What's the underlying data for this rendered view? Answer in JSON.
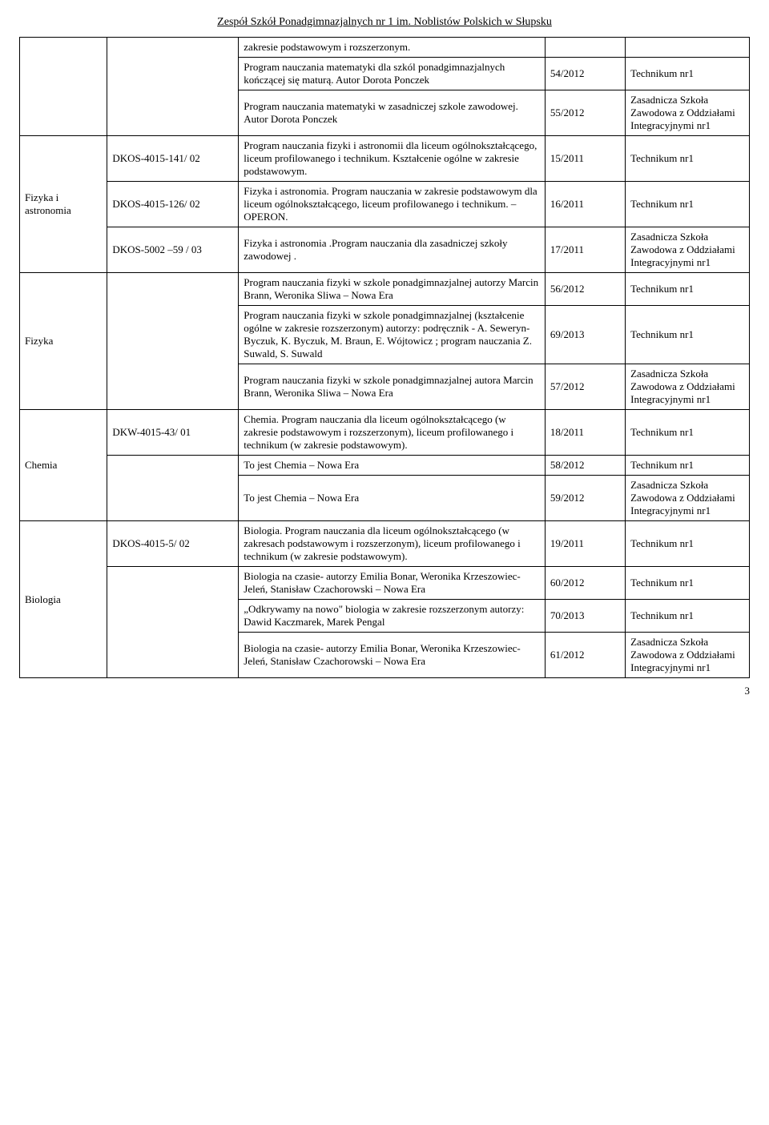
{
  "header": "Zespół Szkół Ponadgimnazjalnych nr 1 im. Noblistów Polskich w Słupsku",
  "page_number": "3",
  "subjects": {
    "fizyka_astronomia": "Fizyka i astronomia",
    "fizyka": "Fizyka",
    "chemia": "Chemia",
    "biologia": "Biologia"
  },
  "codes": {
    "dkos_141": "DKOS-4015-141/ 02",
    "dkos_126": "DKOS-4015-126/ 02",
    "dkos_5002": "DKOS-5002 –59 / 03",
    "dkw_43": "DKW-4015-43/ 01",
    "dkos_5": "DKOS-4015-5/ 02"
  },
  "desc": {
    "r1": "zakresie podstawowym i rozszerzonym.",
    "r2": "Program nauczania matematyki dla szkól ponadgimnazjalnych kończącej się maturą. Autor Dorota Ponczek",
    "r3": "Program nauczania matematyki w zasadniczej szkole zawodowej. Autor Dorota Ponczek",
    "r4": "Program nauczania fizyki i astronomii dla liceum ogólnokształcącego, liceum profilowanego i technikum. Kształcenie ogólne w zakresie podstawowym.",
    "r5": "Fizyka i astronomia. Program nauczania w zakresie podstawowym dla liceum ogólnokształcącego, liceum profilowanego i technikum. – OPERON.",
    "r6": "Fizyka i astronomia .Program nauczania dla zasadniczej szkoły zawodowej .",
    "r7": "Program nauczania fizyki w szkole ponadgimnazjalnej autorzy Marcin Brann, Weronika Sliwa – Nowa Era",
    "r8": "Program nauczania fizyki w szkole ponadgimnazjalnej (kształcenie ogólne w zakresie rozszerzonym) autorzy: podręcznik - A. Seweryn-Byczuk, K. Byczuk, M. Braun, E. Wójtowicz ; program nauczania Z. Suwald, S. Suwald",
    "r9": "Program nauczania fizyki w szkole ponadgimnazjalnej autora Marcin Brann, Weronika Sliwa – Nowa Era",
    "r10": "Chemia. Program nauczania dla liceum ogólnokształcącego (w zakresie podstawowym i rozszerzonym), liceum profilowanego i technikum (w zakresie podstawowym).",
    "r11": "To jest Chemia – Nowa Era",
    "r12": "To jest Chemia – Nowa Era",
    "r13": "Biologia. Program nauczania dla liceum ogólnokształcącego (w zakresach podstawowym i rozszerzonym), liceum profilowanego i technikum (w zakresie podstawowym).",
    "r14": "Biologia na czasie- autorzy Emilia Bonar, Weronika Krzeszowiec-Jeleń, Stanisław Czachorowski – Nowa Era",
    "r15": "„Odkrywamy na nowo\" biologia w zakresie rozszerzonym autorzy: Dawid Kaczmarek, Marek Pengal",
    "r16": "Biologia na czasie- autorzy Emilia Bonar, Weronika Krzeszowiec-Jeleń, Stanisław Czachorowski – Nowa Era"
  },
  "num": {
    "n2": "54/2012",
    "n3": "55/2012",
    "n4": "15/2011",
    "n5": "16/2011",
    "n6": "17/2011",
    "n7": "56/2012",
    "n8": "69/2013",
    "n9": "57/2012",
    "n10": "18/2011",
    "n11": "58/2012",
    "n12": "59/2012",
    "n13": "19/2011",
    "n14": "60/2012",
    "n15": "70/2013",
    "n16": "61/2012"
  },
  "type": {
    "tech": "Technikum nr1",
    "zsz": "Zasadnicza Szkoła Zawodowa z Oddziałami Integracyjnymi nr1",
    "zsz_spaced": "Zasadnicza Szkoła Zawodowa   z Oddziałami Integracyjnymi nr1"
  }
}
